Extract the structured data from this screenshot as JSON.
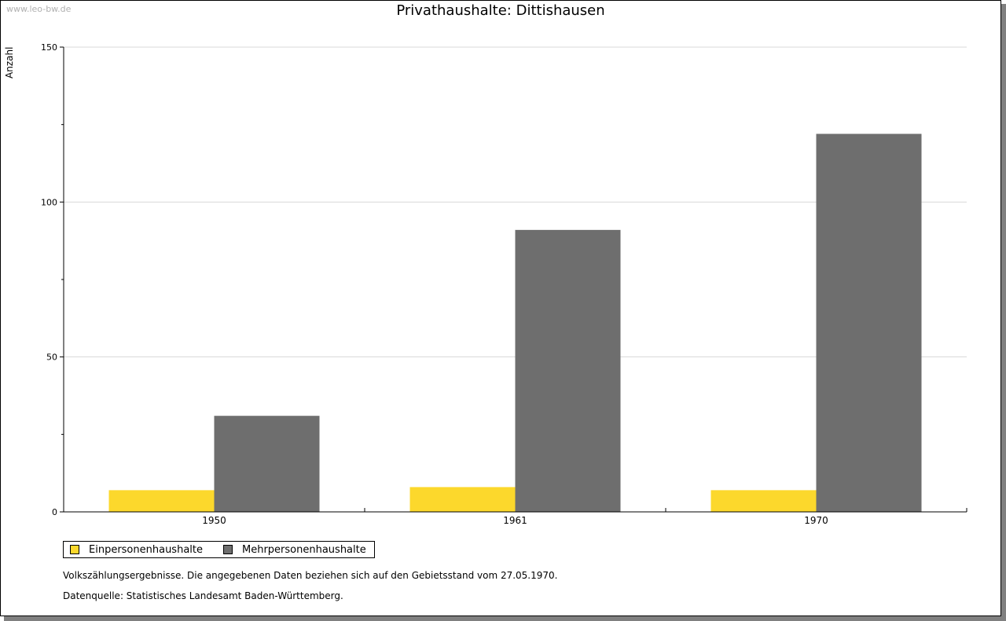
{
  "watermark": "www.leo-bw.de",
  "legend_colors": {
    "einpersonen": "#fcd82c",
    "mehrpersonen": "#6e6e6e"
  },
  "notes": {
    "line1": "Volkszählungsergebnisse. Die angegebenen Daten beziehen sich auf den Gebietsstand vom 27.05.1970.",
    "line2": "Datenquelle: Statistisches Landesamt Baden-Württemberg."
  },
  "chart_data": {
    "type": "bar",
    "title": "Privathaushalte: Dittishausen",
    "xlabel": "",
    "ylabel": "Anzahl",
    "categories": [
      "1950",
      "1961",
      "1970"
    ],
    "series": [
      {
        "name": "Einpersonenhaushalte",
        "values": [
          7,
          8,
          7
        ],
        "color": "#fcd82c"
      },
      {
        "name": "Mehrpersonenhaushalte",
        "values": [
          31,
          91,
          122
        ],
        "color": "#6e6e6e"
      }
    ],
    "ylim": [
      0,
      150
    ],
    "yticks": [
      0,
      50,
      100,
      150
    ],
    "grid": true,
    "legend_position": "bottom-left"
  }
}
